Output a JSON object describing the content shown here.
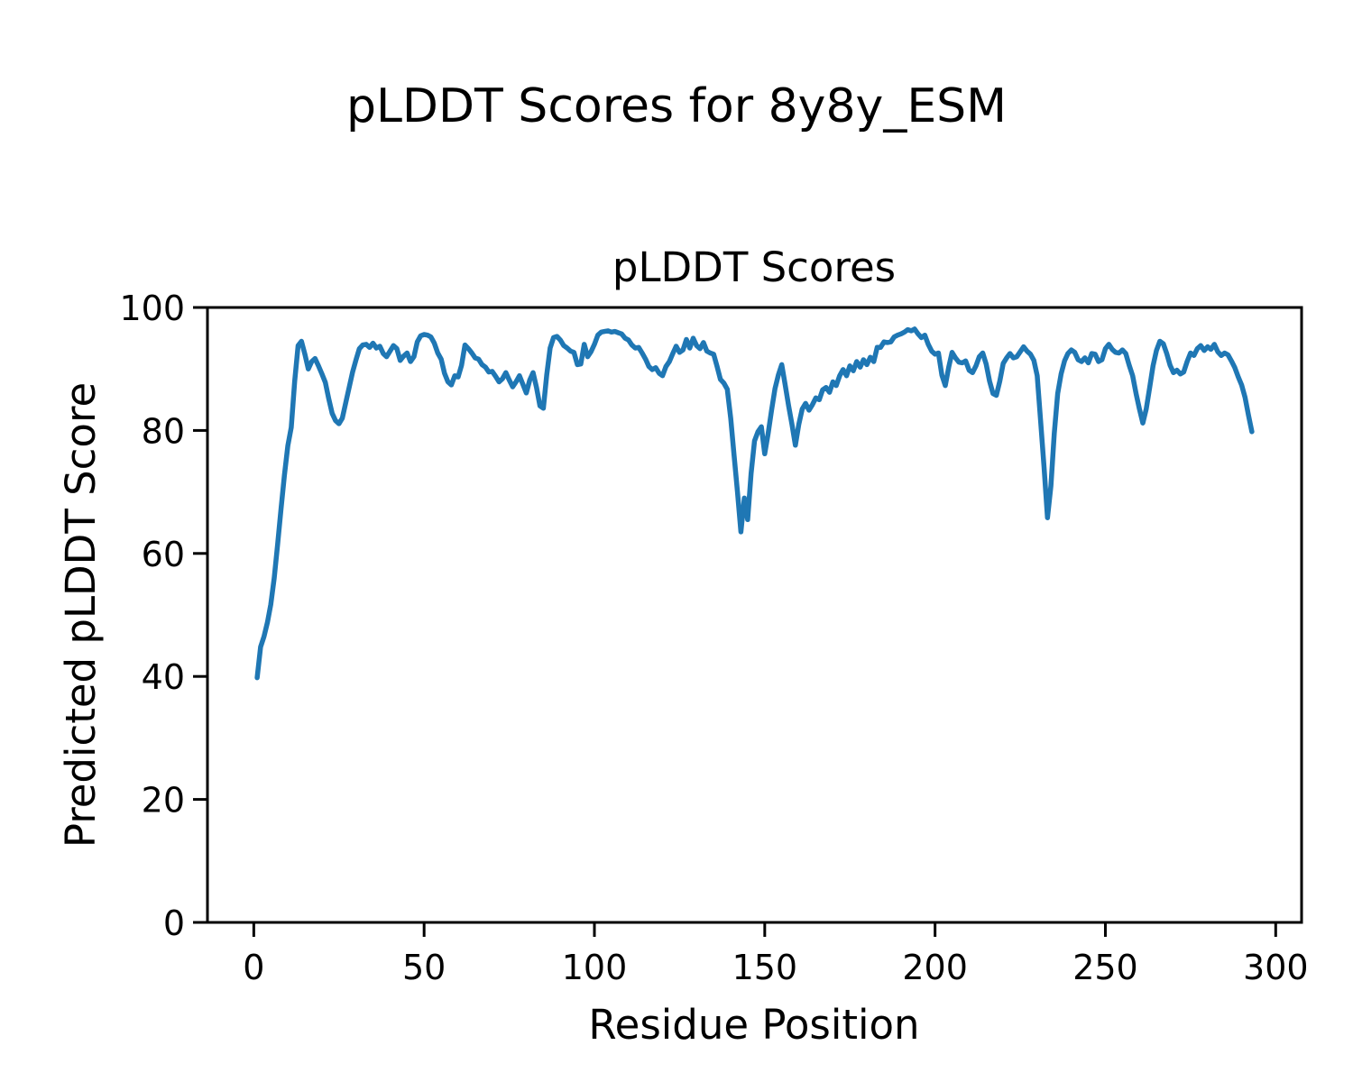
{
  "figure": {
    "suptitle": "pLDDT Scores for 8y8y_ESM"
  },
  "chart_data": {
    "type": "line",
    "title": "pLDDT Scores",
    "xlabel": "Residue Position",
    "ylabel": "Predicted pLDDT Score",
    "line_color": "#1f77b4",
    "background_color": "#ffffff",
    "grid": false,
    "legend": "none",
    "xlim": [
      -13.6,
      307.6
    ],
    "ylim": [
      0,
      100
    ],
    "xticks": [
      0,
      50,
      100,
      150,
      200,
      250,
      300
    ],
    "yticks": [
      0,
      20,
      40,
      60,
      80,
      100
    ],
    "x_start": 1,
    "x_step": 1,
    "series": [
      {
        "name": "plddt",
        "values": [
          39.8,
          44.8,
          46.5,
          48.8,
          51.7,
          56.0,
          61.5,
          67.3,
          72.7,
          77.5,
          80.5,
          88.0,
          93.8,
          94.5,
          92.4,
          90.0,
          91.2,
          91.7,
          90.5,
          89.2,
          87.8,
          85.2,
          82.8,
          81.6,
          81.1,
          82.0,
          84.5,
          87.0,
          89.5,
          91.5,
          93.3,
          93.9,
          94.0,
          93.5,
          94.2,
          93.4,
          93.7,
          92.5,
          92.0,
          92.9,
          93.8,
          93.3,
          91.4,
          92.1,
          92.6,
          91.2,
          92.0,
          94.4,
          95.4,
          95.6,
          95.5,
          95.2,
          94.2,
          92.6,
          91.6,
          89.3,
          87.9,
          87.4,
          88.9,
          88.7,
          90.6,
          93.9,
          93.3,
          92.6,
          91.8,
          91.6,
          90.7,
          90.3,
          89.5,
          89.6,
          88.8,
          87.9,
          88.4,
          89.4,
          88.2,
          87.1,
          87.9,
          88.9,
          87.5,
          86.1,
          88.2,
          89.4,
          87.0,
          84.0,
          83.6,
          89.0,
          93.4,
          95.1,
          95.3,
          94.7,
          93.8,
          93.4,
          92.9,
          92.7,
          90.7,
          90.8,
          94.0,
          92.0,
          92.8,
          94.0,
          95.5,
          96.0,
          96.1,
          96.2,
          96.0,
          96.1,
          95.9,
          95.7,
          95.0,
          94.7,
          93.9,
          93.4,
          93.5,
          92.6,
          91.6,
          90.4,
          89.9,
          90.2,
          89.3,
          88.9,
          90.4,
          91.2,
          92.5,
          93.7,
          92.7,
          93.1,
          94.8,
          93.4,
          95.0,
          93.8,
          93.3,
          94.3,
          92.9,
          92.6,
          92.4,
          90.4,
          88.3,
          87.7,
          86.7,
          82.0,
          76.0,
          70.0,
          63.5,
          69.0,
          65.5,
          73.0,
          78.3,
          79.8,
          80.6,
          76.2,
          79.5,
          83.3,
          86.8,
          89.0,
          90.7,
          87.4,
          84.0,
          81.0,
          77.6,
          81.0,
          83.5,
          84.4,
          83.3,
          84.2,
          85.3,
          85.0,
          86.6,
          87.0,
          86.2,
          87.9,
          87.3,
          88.9,
          89.9,
          88.9,
          90.5,
          89.7,
          91.2,
          90.3,
          91.5,
          90.7,
          91.9,
          91.2,
          93.5,
          93.5,
          94.4,
          94.3,
          94.4,
          95.2,
          95.5,
          95.7,
          96.0,
          96.4,
          96.2,
          96.5,
          95.7,
          95.1,
          95.5,
          94.0,
          92.9,
          92.4,
          92.6,
          89.0,
          87.3,
          90.3,
          92.7,
          91.8,
          91.1,
          91.0,
          91.3,
          89.8,
          89.4,
          90.5,
          92.0,
          92.6,
          90.8,
          88.0,
          86.0,
          85.7,
          88.0,
          90.9,
          91.8,
          92.5,
          91.8,
          92.0,
          92.8,
          93.6,
          92.9,
          92.4,
          91.4,
          88.9,
          81.5,
          74.0,
          65.8,
          71.0,
          79.5,
          86.0,
          89.2,
          91.3,
          92.5,
          93.1,
          92.7,
          91.5,
          91.2,
          91.8,
          91.0,
          92.5,
          92.4,
          91.2,
          91.5,
          93.3,
          94.0,
          93.2,
          92.7,
          92.6,
          93.1,
          92.5,
          90.6,
          88.9,
          86.0,
          83.5,
          81.2,
          83.5,
          87.0,
          90.5,
          93.0,
          94.5,
          94.1,
          92.5,
          90.6,
          89.4,
          89.8,
          89.2,
          89.5,
          91.2,
          92.6,
          92.2,
          93.3,
          93.8,
          93.0,
          93.6,
          93.2,
          94.0,
          92.8,
          92.2,
          92.6,
          92.3,
          91.3,
          90.2,
          88.7,
          87.4,
          85.4,
          82.5,
          79.8
        ]
      }
    ]
  }
}
